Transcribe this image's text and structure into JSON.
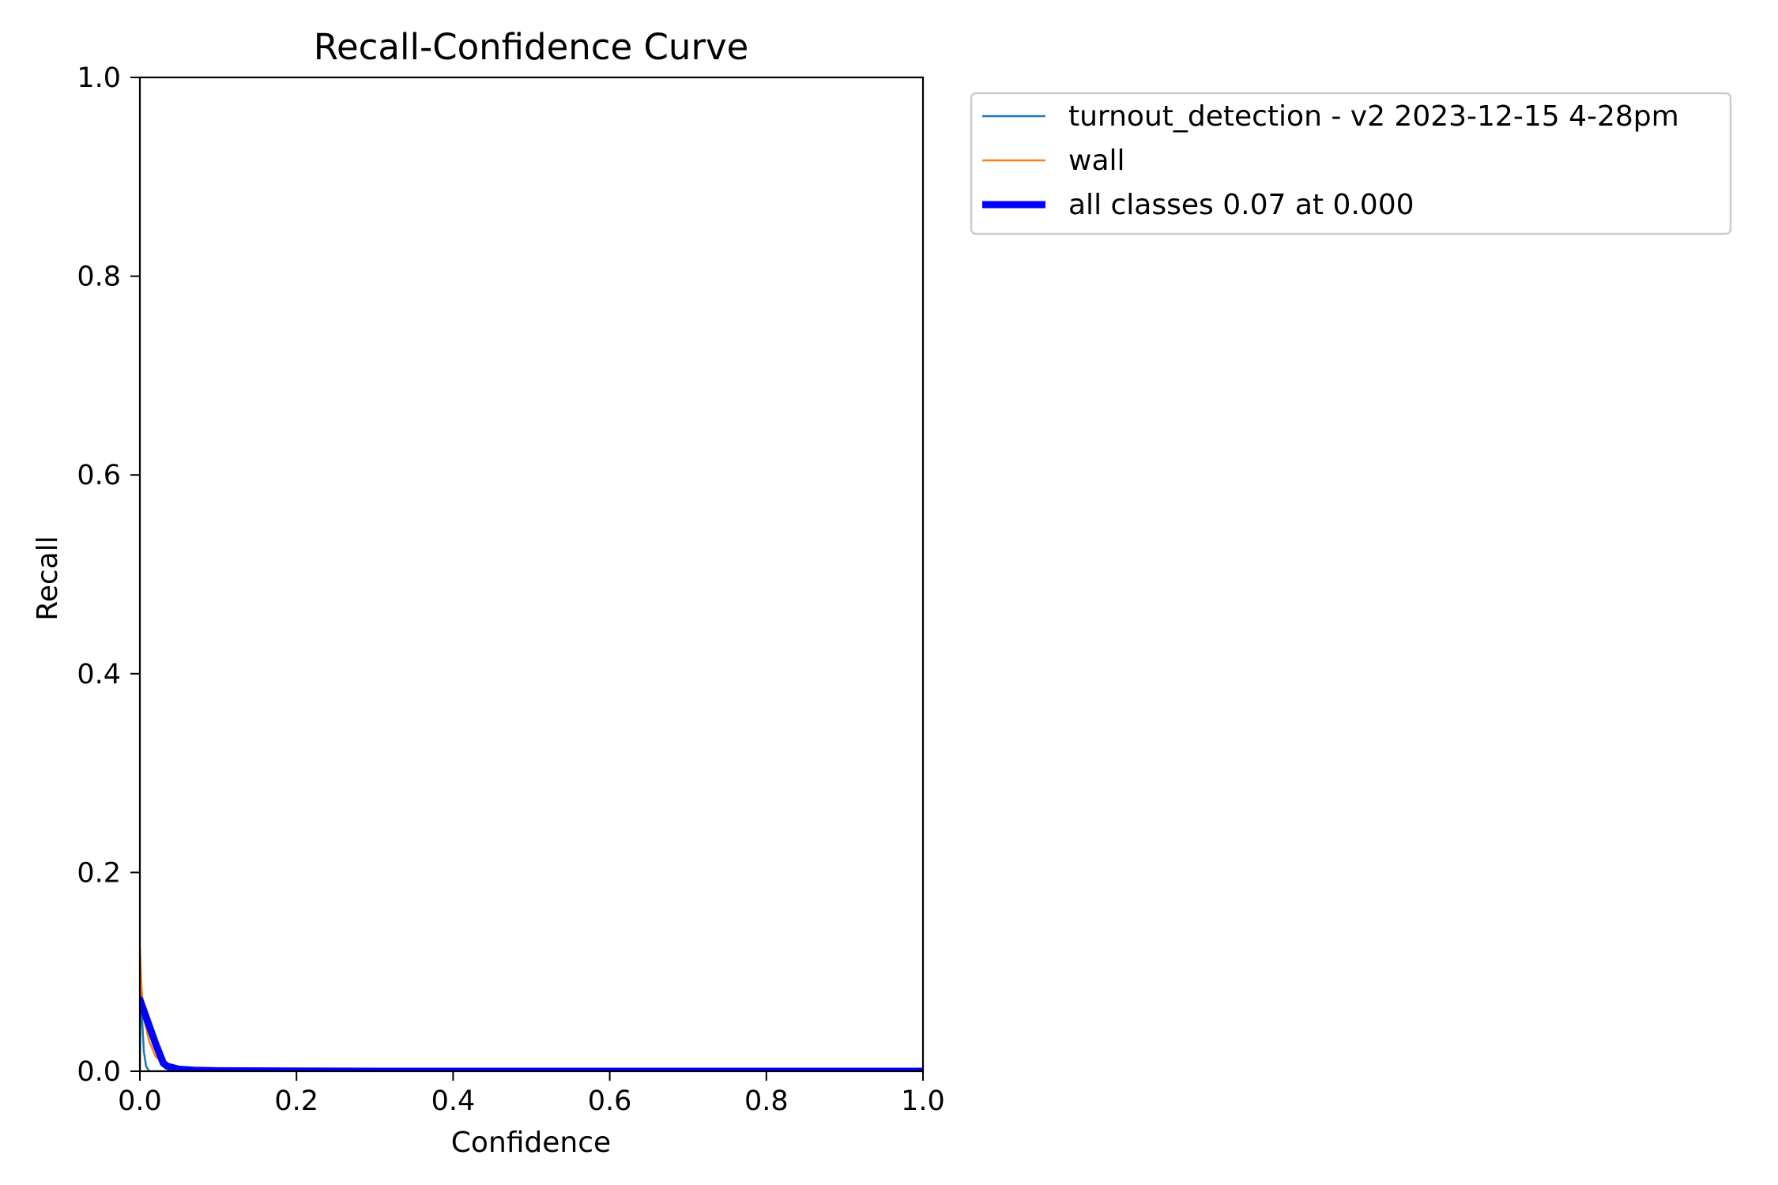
{
  "chart_data": {
    "type": "line",
    "title": "Recall-Confidence Curve",
    "xlabel": "Confidence",
    "ylabel": "Recall",
    "xlim": [
      0,
      1
    ],
    "ylim": [
      0,
      1
    ],
    "xticks": [
      0.0,
      0.2,
      0.4,
      0.6,
      0.8,
      1.0
    ],
    "yticks": [
      0.0,
      0.2,
      0.4,
      0.6,
      0.8,
      1.0
    ],
    "xtick_labels": [
      "0.0",
      "0.2",
      "0.4",
      "0.6",
      "0.8",
      "1.0"
    ],
    "ytick_labels": [
      "0.0",
      "0.2",
      "0.4",
      "0.6",
      "0.8",
      "1.0"
    ],
    "grid": false,
    "legend_position": "outside-top-right",
    "series": [
      {
        "name": "turnout_detection - v2 2023-12-15 4-28pm",
        "color": "#1f77b4",
        "x": [
          0.0,
          0.001,
          0.003,
          0.005,
          0.008,
          0.012,
          0.02,
          0.1,
          0.5,
          1.0
        ],
        "y": [
          0.0,
          0.08,
          0.05,
          0.02,
          0.005,
          0.0,
          0.0,
          0.0,
          0.0,
          0.0
        ]
      },
      {
        "name": "wall",
        "color": "#ff7f0e",
        "x": [
          0.0,
          0.002,
          0.006,
          0.012,
          0.02,
          0.03,
          0.04,
          0.06,
          0.1,
          0.5,
          1.0
        ],
        "y": [
          0.125,
          0.085,
          0.05,
          0.03,
          0.015,
          0.008,
          0.004,
          0.002,
          0.0,
          0.0,
          0.0
        ]
      },
      {
        "name": "all classes 0.07 at 0.000",
        "color": "#0000ff",
        "x": [
          0.0,
          0.01,
          0.02,
          0.03,
          0.035,
          0.05,
          0.07,
          0.1,
          0.3,
          0.6,
          1.0
        ],
        "y": [
          0.072,
          0.05,
          0.028,
          0.008,
          0.005,
          0.002,
          0.001,
          0.0005,
          0.0,
          0.0,
          0.0
        ]
      }
    ]
  }
}
